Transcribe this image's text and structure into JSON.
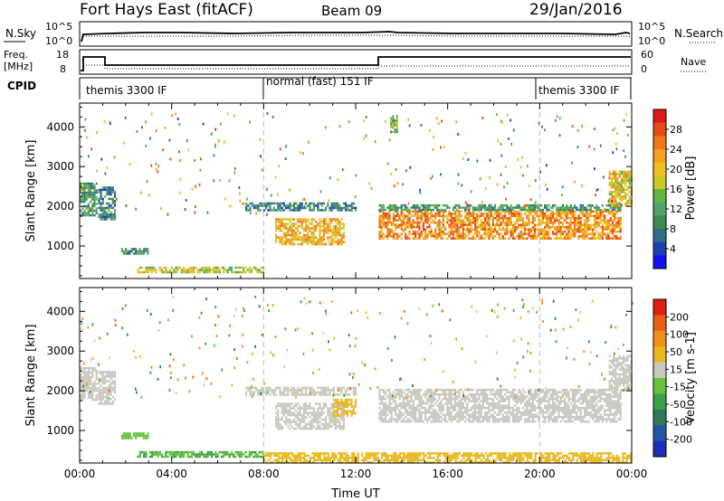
{
  "header": {
    "station": "Fort Hays East (fitACF)",
    "beam": "Beam 09",
    "date": "29/Jan/2016"
  },
  "noise_panel": {
    "left_label": "N.Sky",
    "left_ticks": [
      "10^5",
      "10^0"
    ],
    "right_ticks": [
      "10^5",
      "10^0"
    ],
    "right_label": "N.Search"
  },
  "freq_panel": {
    "left_label_1": "Freq.",
    "left_label_2": "[MHz]",
    "left_ticks": [
      "18",
      "8"
    ],
    "right_ticks": [
      "60",
      "0"
    ],
    "right_label": "Nave"
  },
  "cpid": {
    "label": "CPID",
    "segments": [
      {
        "name": "themis 3300 IF",
        "start_h": 0,
        "end_h": 8
      },
      {
        "name": "normal (fast) 151 IF",
        "start_h": 8,
        "end_h": 20
      },
      {
        "name": "themis 3300 IF",
        "start_h": 20,
        "end_h": 24
      }
    ]
  },
  "colorbars": {
    "power": {
      "label": "Power [dB]",
      "ticks": [
        "4",
        "8",
        "12",
        "16",
        "20",
        "24",
        "28"
      ],
      "colors": [
        "#1010f0",
        "#1c3fae",
        "#2f6e8a",
        "#3f8a54",
        "#4fa46a",
        "#62b53f",
        "#c8c828",
        "#f0c020",
        "#f5a020",
        "#f07818",
        "#e84a18",
        "#e01818"
      ]
    },
    "velocity": {
      "label": "Velocity [m s-1]",
      "ticks": [
        "200",
        "100",
        "50",
        "15",
        "-15",
        "-50",
        "-100",
        "-200"
      ],
      "colors": [
        "#1a2fb8",
        "#2256a8",
        "#2f7a5a",
        "#3ea04a",
        "#66c23a",
        "#c8c8c0",
        "#e8b820",
        "#f0901a",
        "#e86018",
        "#e02010"
      ]
    }
  },
  "chart_data": [
    {
      "type": "heatmap",
      "title": "",
      "xlabel": "",
      "ylabel": "Slant Range [km]",
      "xlim": [
        0,
        24
      ],
      "ylim": [
        180,
        4600
      ],
      "yticks": [
        1000,
        2000,
        3000,
        4000
      ],
      "variable": "power",
      "regions": [
        {
          "t": [
            0.0,
            0.7
          ],
          "r": [
            1800,
            2600
          ],
          "v": 10
        },
        {
          "t": [
            0.8,
            1.5
          ],
          "r": [
            1700,
            2500
          ],
          "v": 8
        },
        {
          "t": [
            1.8,
            3.0
          ],
          "r": [
            800,
            950
          ],
          "v": 9
        },
        {
          "t": [
            2.5,
            8.0
          ],
          "r": [
            350,
            480
          ],
          "v": 16
        },
        {
          "t": [
            8.5,
            11.5
          ],
          "r": [
            1050,
            1700
          ],
          "v": 20
        },
        {
          "t": [
            7.2,
            12.0
          ],
          "r": [
            1900,
            2100
          ],
          "v": 8
        },
        {
          "t": [
            13.0,
            23.5
          ],
          "r": [
            1200,
            1900
          ],
          "v": 22
        },
        {
          "t": [
            13.0,
            23.5
          ],
          "r": [
            1900,
            2050
          ],
          "v": 10
        },
        {
          "t": [
            13.5,
            13.8
          ],
          "r": [
            3900,
            4300
          ],
          "v": 12
        },
        {
          "t": [
            23.0,
            24.0
          ],
          "r": [
            2000,
            2900
          ],
          "v": 18
        }
      ]
    },
    {
      "type": "heatmap",
      "title": "",
      "xlabel": "Time UT",
      "ylabel": "Slant Range [km]",
      "xlim": [
        0,
        24
      ],
      "ylim": [
        180,
        4600
      ],
      "yticks": [
        1000,
        2000,
        3000,
        4000
      ],
      "xticks": [
        "00:00",
        "04:00",
        "08:00",
        "12:00",
        "16:00",
        "20:00",
        "00:00"
      ],
      "variable": "velocity",
      "regions": [
        {
          "t": [
            0.0,
            0.7
          ],
          "r": [
            1800,
            2600
          ],
          "v": 0
        },
        {
          "t": [
            0.8,
            1.5
          ],
          "r": [
            1700,
            2500
          ],
          "v": 0
        },
        {
          "t": [
            1.8,
            3.0
          ],
          "r": [
            800,
            950
          ],
          "v": 40
        },
        {
          "t": [
            2.5,
            8.0
          ],
          "r": [
            350,
            480
          ],
          "v": 50
        },
        {
          "t": [
            8.5,
            11.5
          ],
          "r": [
            1050,
            1700
          ],
          "v": 0
        },
        {
          "t": [
            11.0,
            12.0
          ],
          "r": [
            1400,
            1800
          ],
          "v": -40
        },
        {
          "t": [
            7.2,
            12.0
          ],
          "r": [
            1900,
            2100
          ],
          "v": 0
        },
        {
          "t": [
            13.0,
            23.5
          ],
          "r": [
            1200,
            2050
          ],
          "v": 0
        },
        {
          "t": [
            8.0,
            24.0
          ],
          "r": [
            180,
            450
          ],
          "v": -40
        },
        {
          "t": [
            23.0,
            24.0
          ],
          "r": [
            2000,
            2900
          ],
          "v": 0
        }
      ]
    }
  ]
}
